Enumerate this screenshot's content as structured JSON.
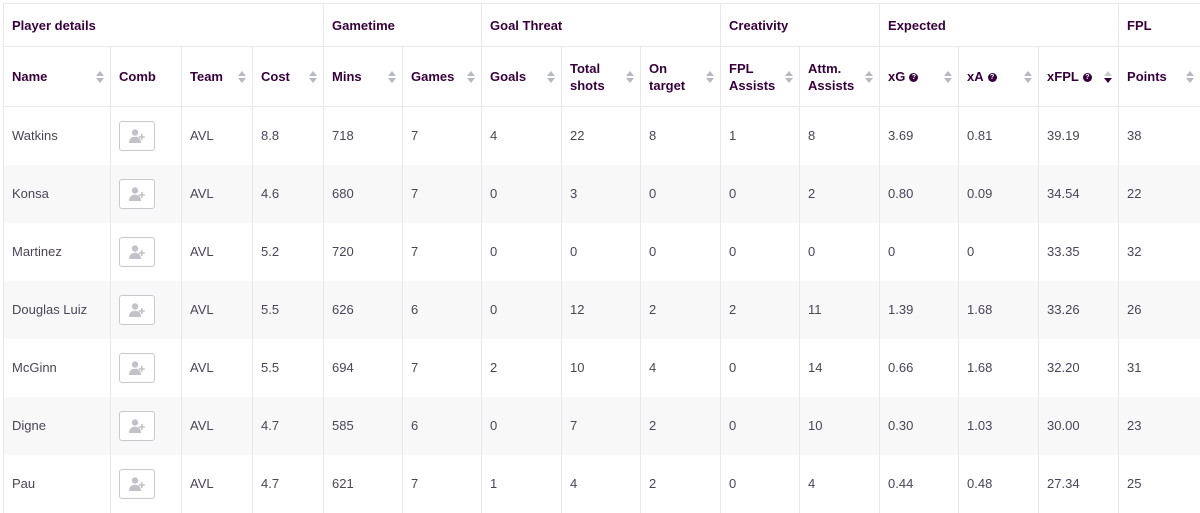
{
  "groups": {
    "player_details": "Player details",
    "gametime": "Gametime",
    "goal_threat": "Goal Threat",
    "creativity": "Creativity",
    "expected": "Expected",
    "fpl": "FPL"
  },
  "columns": {
    "name": "Name",
    "comb": "Comb",
    "team": "Team",
    "cost": "Cost",
    "mins": "Mins",
    "games": "Games",
    "goals": "Goals",
    "total_shots_1": "Total",
    "total_shots_2": "shots",
    "on_target_1": "On",
    "on_target_2": "target",
    "fpl_assists_1": "FPL",
    "fpl_assists_2": "Assists",
    "attm_assists_1": "Attm.",
    "attm_assists_2": "Assists",
    "xg": "xG",
    "xa": "xA",
    "xfpl": "xFPL",
    "points": "Points"
  },
  "sort": {
    "active_column": "xfpl",
    "direction": "descending"
  },
  "colors": {
    "text_primary": "#37003c",
    "text_cell": "#4b4458",
    "row_alt": "#f8f8f9",
    "border": "#e8e8ec"
  },
  "icons": {
    "comb": "add-user-icon",
    "sort": "sort-arrows-icon",
    "info": "info-icon"
  },
  "rows": [
    {
      "name": "Watkins",
      "team": "AVL",
      "cost": "8.8",
      "mins": "718",
      "games": "7",
      "goals": "4",
      "total_shots": "22",
      "on_target": "8",
      "fpl_assists": "1",
      "attm_assists": "8",
      "xg": "3.69",
      "xa": "0.81",
      "xfpl": "39.19",
      "points": "38"
    },
    {
      "name": "Konsa",
      "team": "AVL",
      "cost": "4.6",
      "mins": "680",
      "games": "7",
      "goals": "0",
      "total_shots": "3",
      "on_target": "0",
      "fpl_assists": "0",
      "attm_assists": "2",
      "xg": "0.80",
      "xa": "0.09",
      "xfpl": "34.54",
      "points": "22"
    },
    {
      "name": "Martinez",
      "team": "AVL",
      "cost": "5.2",
      "mins": "720",
      "games": "7",
      "goals": "0",
      "total_shots": "0",
      "on_target": "0",
      "fpl_assists": "0",
      "attm_assists": "0",
      "xg": "0",
      "xa": "0",
      "xfpl": "33.35",
      "points": "32"
    },
    {
      "name": "Douglas Luiz",
      "team": "AVL",
      "cost": "5.5",
      "mins": "626",
      "games": "6",
      "goals": "0",
      "total_shots": "12",
      "on_target": "2",
      "fpl_assists": "2",
      "attm_assists": "11",
      "xg": "1.39",
      "xa": "1.68",
      "xfpl": "33.26",
      "points": "26"
    },
    {
      "name": "McGinn",
      "team": "AVL",
      "cost": "5.5",
      "mins": "694",
      "games": "7",
      "goals": "2",
      "total_shots": "10",
      "on_target": "4",
      "fpl_assists": "0",
      "attm_assists": "14",
      "xg": "0.66",
      "xa": "1.68",
      "xfpl": "32.20",
      "points": "31"
    },
    {
      "name": "Digne",
      "team": "AVL",
      "cost": "4.7",
      "mins": "585",
      "games": "6",
      "goals": "0",
      "total_shots": "7",
      "on_target": "2",
      "fpl_assists": "0",
      "attm_assists": "10",
      "xg": "0.30",
      "xa": "1.03",
      "xfpl": "30.00",
      "points": "23"
    },
    {
      "name": "Pau",
      "team": "AVL",
      "cost": "4.7",
      "mins": "621",
      "games": "7",
      "goals": "1",
      "total_shots": "4",
      "on_target": "2",
      "fpl_assists": "0",
      "attm_assists": "4",
      "xg": "0.44",
      "xa": "0.48",
      "xfpl": "27.34",
      "points": "25"
    }
  ]
}
